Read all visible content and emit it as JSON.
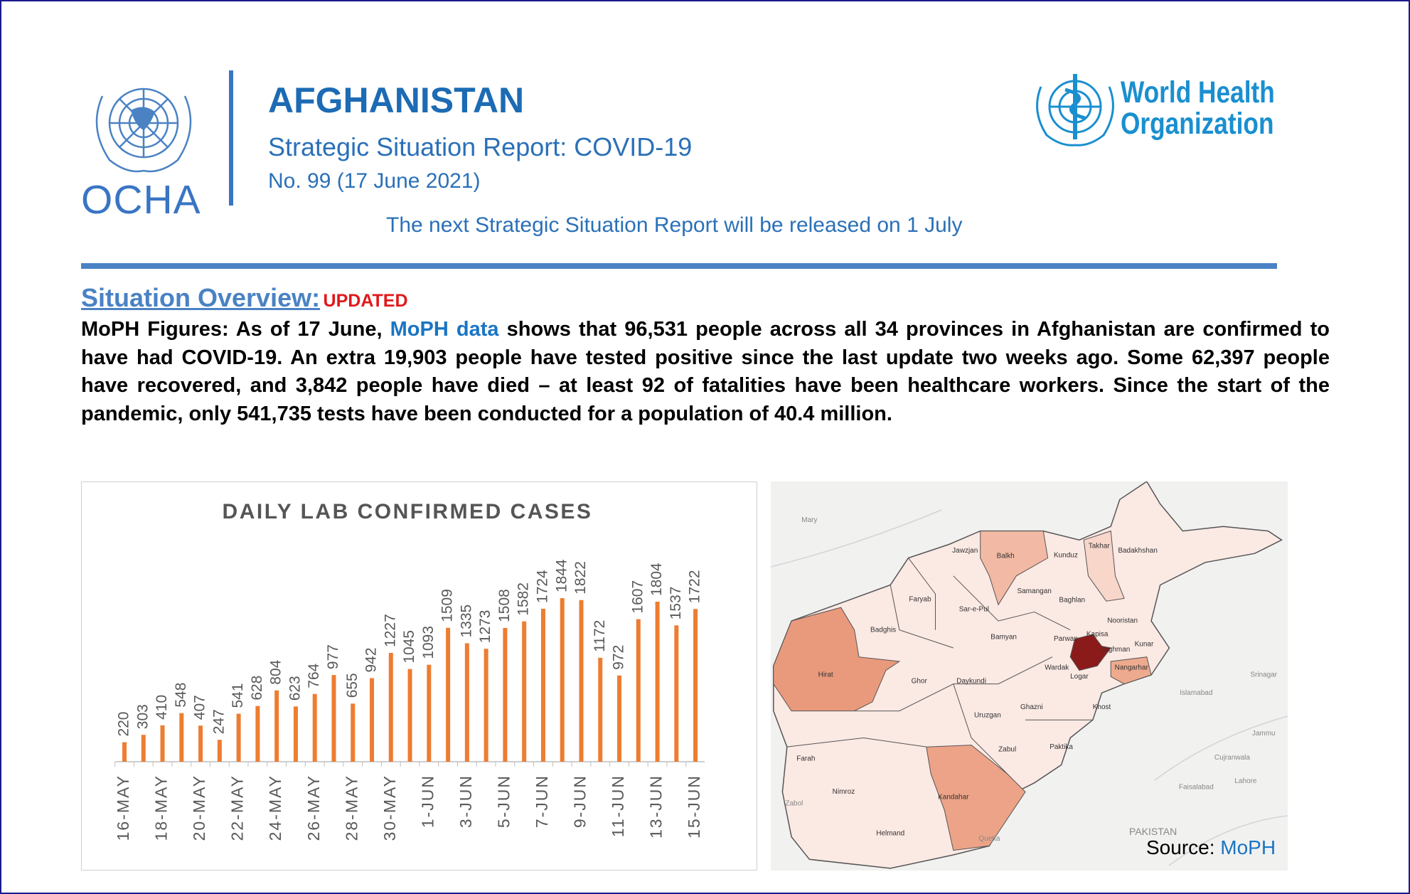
{
  "header": {
    "ocha_logo_text": "OCHA",
    "title": "AFGHANISTAN",
    "subtitle": "Strategic Situation Report: COVID-19",
    "issue": "No. 99 (17 June 2021)",
    "next_report": "The next Strategic Situation Report will be released on 1 July",
    "who_logo_line1": "World Health",
    "who_logo_line2": "Organization"
  },
  "overview": {
    "heading": "Situation Overview:",
    "badge": "UPDATED",
    "text_before": "MoPH Figures: As of 17 June, ",
    "link": "MoPH data",
    "text_after": " shows that 96,531 people across all 34 provinces in Afghanistan are confirmed to have had COVID-19. An extra 19,903 people have tested positive since the last update two weeks ago. Some 62,397 people have recovered, and 3,842 people have died – at least 92 of fatalities have been healthcare workers. Since the start of the pandemic, only 541,735 tests have been conducted for a population of 40.4 million."
  },
  "chart_data": {
    "type": "bar",
    "title": "DAILY LAB CONFIRMED CASES",
    "categories": [
      "16-MAY",
      null,
      "18-MAY",
      null,
      "20-MAY",
      null,
      "22-MAY",
      null,
      "24-MAY",
      null,
      "26-MAY",
      null,
      "28-MAY",
      null,
      "30-MAY",
      null,
      "1-JUN",
      null,
      "3-JUN",
      null,
      "5-JUN",
      null,
      "7-JUN",
      null,
      "9-JUN",
      null,
      "11-JUN",
      null,
      "13-JUN",
      null,
      "15-JUN"
    ],
    "values": [
      220,
      303,
      410,
      548,
      407,
      247,
      541,
      628,
      804,
      623,
      764,
      977,
      655,
      942,
      1227,
      1045,
      1093,
      1509,
      1335,
      1273,
      1508,
      1582,
      1724,
      1844,
      1822,
      1172,
      972,
      1607,
      1804,
      1537,
      1722
    ],
    "color": "#ed7d31"
  },
  "map": {
    "provinces": [
      "Jawzjan",
      "Balkh",
      "Kunduz",
      "Takhar",
      "Badakhshan",
      "Faryab",
      "Samangan",
      "Baghlan",
      "Sar-e-Pul",
      "Badghis",
      "Bamyan",
      "Parwan",
      "Kapisa",
      "Nooristan",
      "Hirat",
      "Ghor",
      "Wardak",
      "Daykundi",
      "Nangarhar",
      "Logar",
      "Ghazni",
      "Khost",
      "Uruzgan",
      "Zabul",
      "Paktika",
      "Farah",
      "Nimroz",
      "Kandahar",
      "Helmand",
      "Kunar",
      "Laghman"
    ],
    "places": [
      "Mary",
      "Zabol",
      "Srinagar",
      "Islamabad",
      "Jammu",
      "Lahore",
      "Faisalabad",
      "Cujranwala",
      "PAKISTAN",
      "Quetta"
    ],
    "source_prefix": "Source:",
    "source_link": "MoPH"
  }
}
